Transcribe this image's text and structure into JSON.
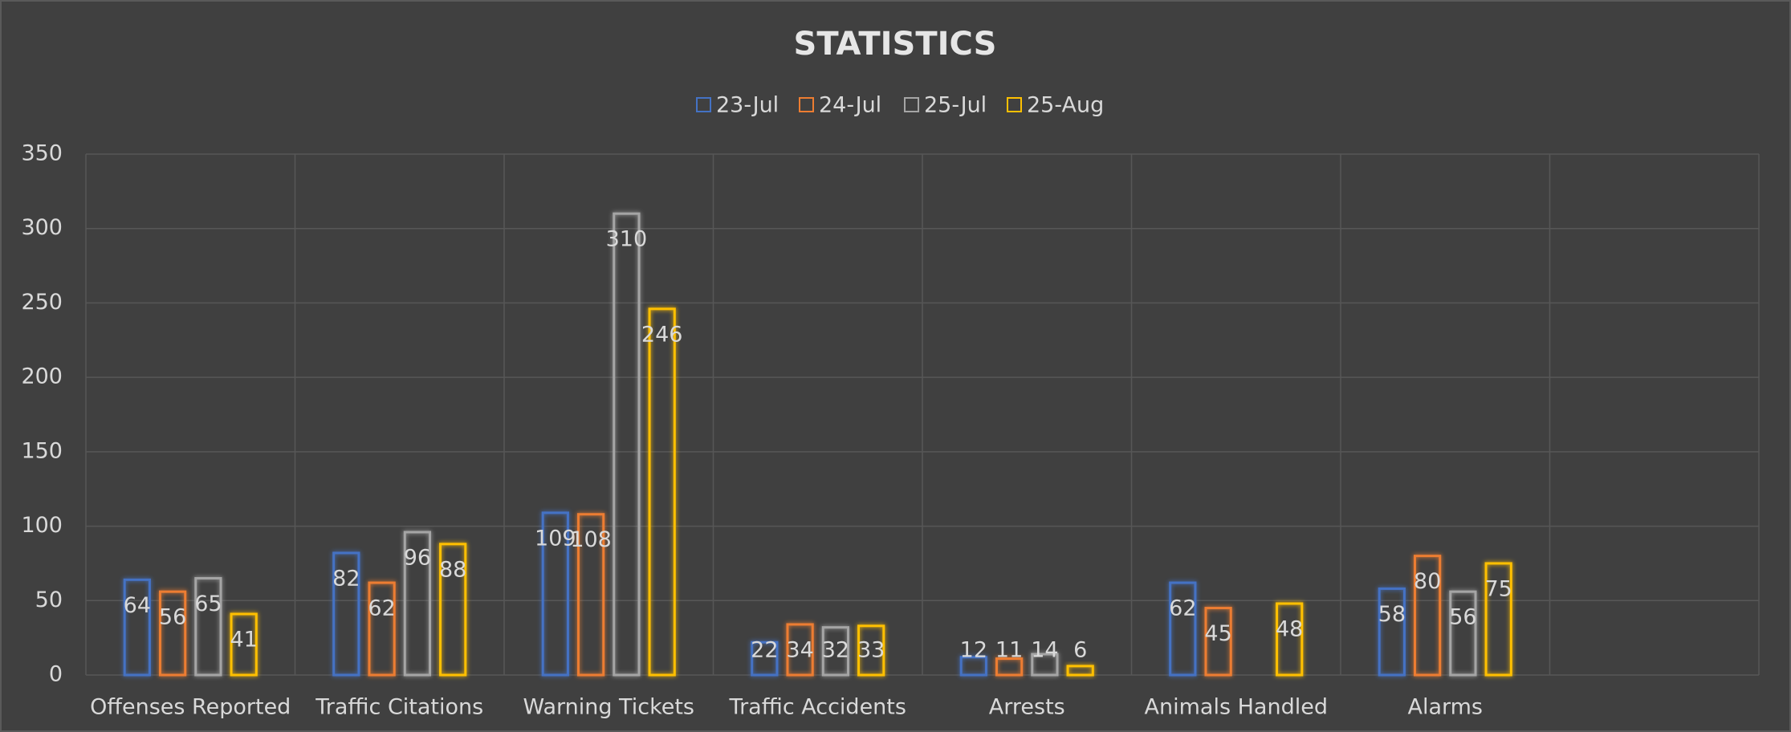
{
  "chart_data": {
    "type": "bar",
    "title": "STATISTICS",
    "categories": [
      "Offenses Reported",
      "Traffic Citations",
      "Warning Tickets",
      "Traffic Accidents",
      "Arrests",
      "Animals Handled",
      "Alarms",
      null
    ],
    "series": [
      {
        "name": "23-Jul",
        "color": "#4472c4",
        "values": [
          64,
          82,
          109,
          22,
          12,
          62,
          58,
          null
        ]
      },
      {
        "name": "24-Jul",
        "color": "#ed7d31",
        "values": [
          56,
          62,
          108,
          34,
          11,
          45,
          80,
          null
        ]
      },
      {
        "name": "25-Jul",
        "color": "#a5a5a5",
        "values": [
          65,
          96,
          310,
          32,
          14,
          null,
          56,
          null
        ]
      },
      {
        "name": "25-Aug",
        "color": "#ffc000",
        "values": [
          41,
          88,
          246,
          33,
          6,
          48,
          75,
          null
        ]
      }
    ],
    "ylim": [
      0,
      350
    ],
    "yticks": [
      0,
      50,
      100,
      150,
      200,
      250,
      300,
      350
    ],
    "grid": true,
    "legend": "top"
  }
}
